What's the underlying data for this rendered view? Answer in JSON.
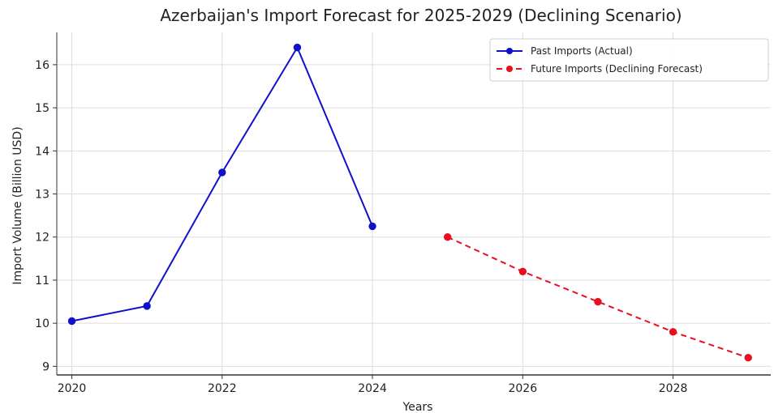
{
  "chart_data": {
    "type": "line",
    "title": "Azerbaijan's Import Forecast for 2025-2029 (Declining Scenario)",
    "xlabel": "Years",
    "ylabel": "Import Volume (Billion USD)",
    "xlim": [
      2019.8,
      2029.3
    ],
    "ylim": [
      8.8,
      16.75
    ],
    "x_ticks": [
      2020,
      2022,
      2024,
      2026,
      2028
    ],
    "y_ticks": [
      9,
      10,
      11,
      12,
      13,
      14,
      15,
      16
    ],
    "grid": true,
    "legend_position": "top-right",
    "series": [
      {
        "name": "Past Imports (Actual)",
        "color": "#1111cc",
        "line_style": "solid",
        "marker": "circle",
        "x": [
          2020,
          2021,
          2022,
          2023,
          2024
        ],
        "values": [
          10.05,
          10.4,
          13.5,
          16.4,
          12.25
        ]
      },
      {
        "name": "Future Imports (Declining Forecast)",
        "color": "#e8101e",
        "line_style": "dashed",
        "marker": "circle",
        "x": [
          2025,
          2026,
          2027,
          2028,
          2029
        ],
        "values": [
          12.0,
          11.2,
          10.5,
          9.8,
          9.2
        ]
      }
    ]
  }
}
